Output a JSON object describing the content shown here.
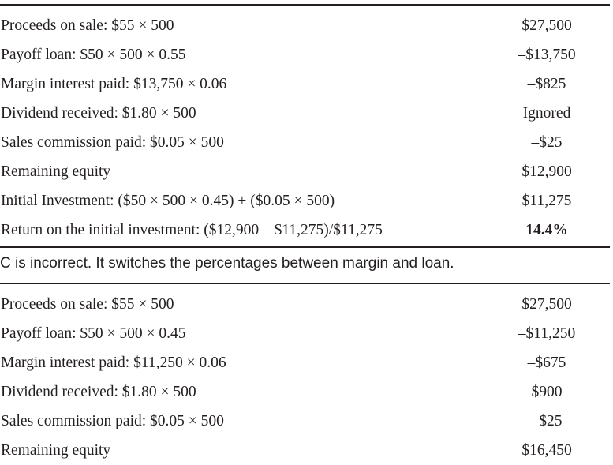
{
  "table1": {
    "rows": [
      {
        "label": "Proceeds on sale: $55 × 500",
        "value": "$27,500"
      },
      {
        "label": "Payoff loan: $50 × 500 × 0.55",
        "value": "–$13,750"
      },
      {
        "label": "Margin interest paid: $13,750 × 0.06",
        "value": "–$825"
      },
      {
        "label": "Dividend received: $1.80 × 500",
        "value": "Ignored"
      },
      {
        "label": "Sales commission paid: $0.05 × 500",
        "value": "–$25"
      },
      {
        "label": "Remaining equity",
        "value": "$12,900"
      },
      {
        "label": "Initial Investment: ($50 × 500 × 0.45) + ($0.05 × 500)",
        "value": "$11,275"
      },
      {
        "label": "Return on the initial investment: ($12,900 – $11,275)/$11,275",
        "value": "14.4%"
      }
    ]
  },
  "note": "C is incorrect. It switches the percentages between margin and loan.",
  "table2": {
    "rows": [
      {
        "label": "Proceeds on sale: $55 × 500",
        "value": "$27,500"
      },
      {
        "label": "Payoff loan: $50 × 500 × 0.45",
        "value": "–$11,250"
      },
      {
        "label": "Margin interest paid: $11,250 × 0.06",
        "value": "–$675"
      },
      {
        "label": "Dividend received: $1.80 × 500",
        "value": "$900"
      },
      {
        "label": "Sales commission paid: $0.05 × 500",
        "value": "–$25"
      },
      {
        "label": "Remaining equity",
        "value": "$16,450"
      }
    ]
  }
}
